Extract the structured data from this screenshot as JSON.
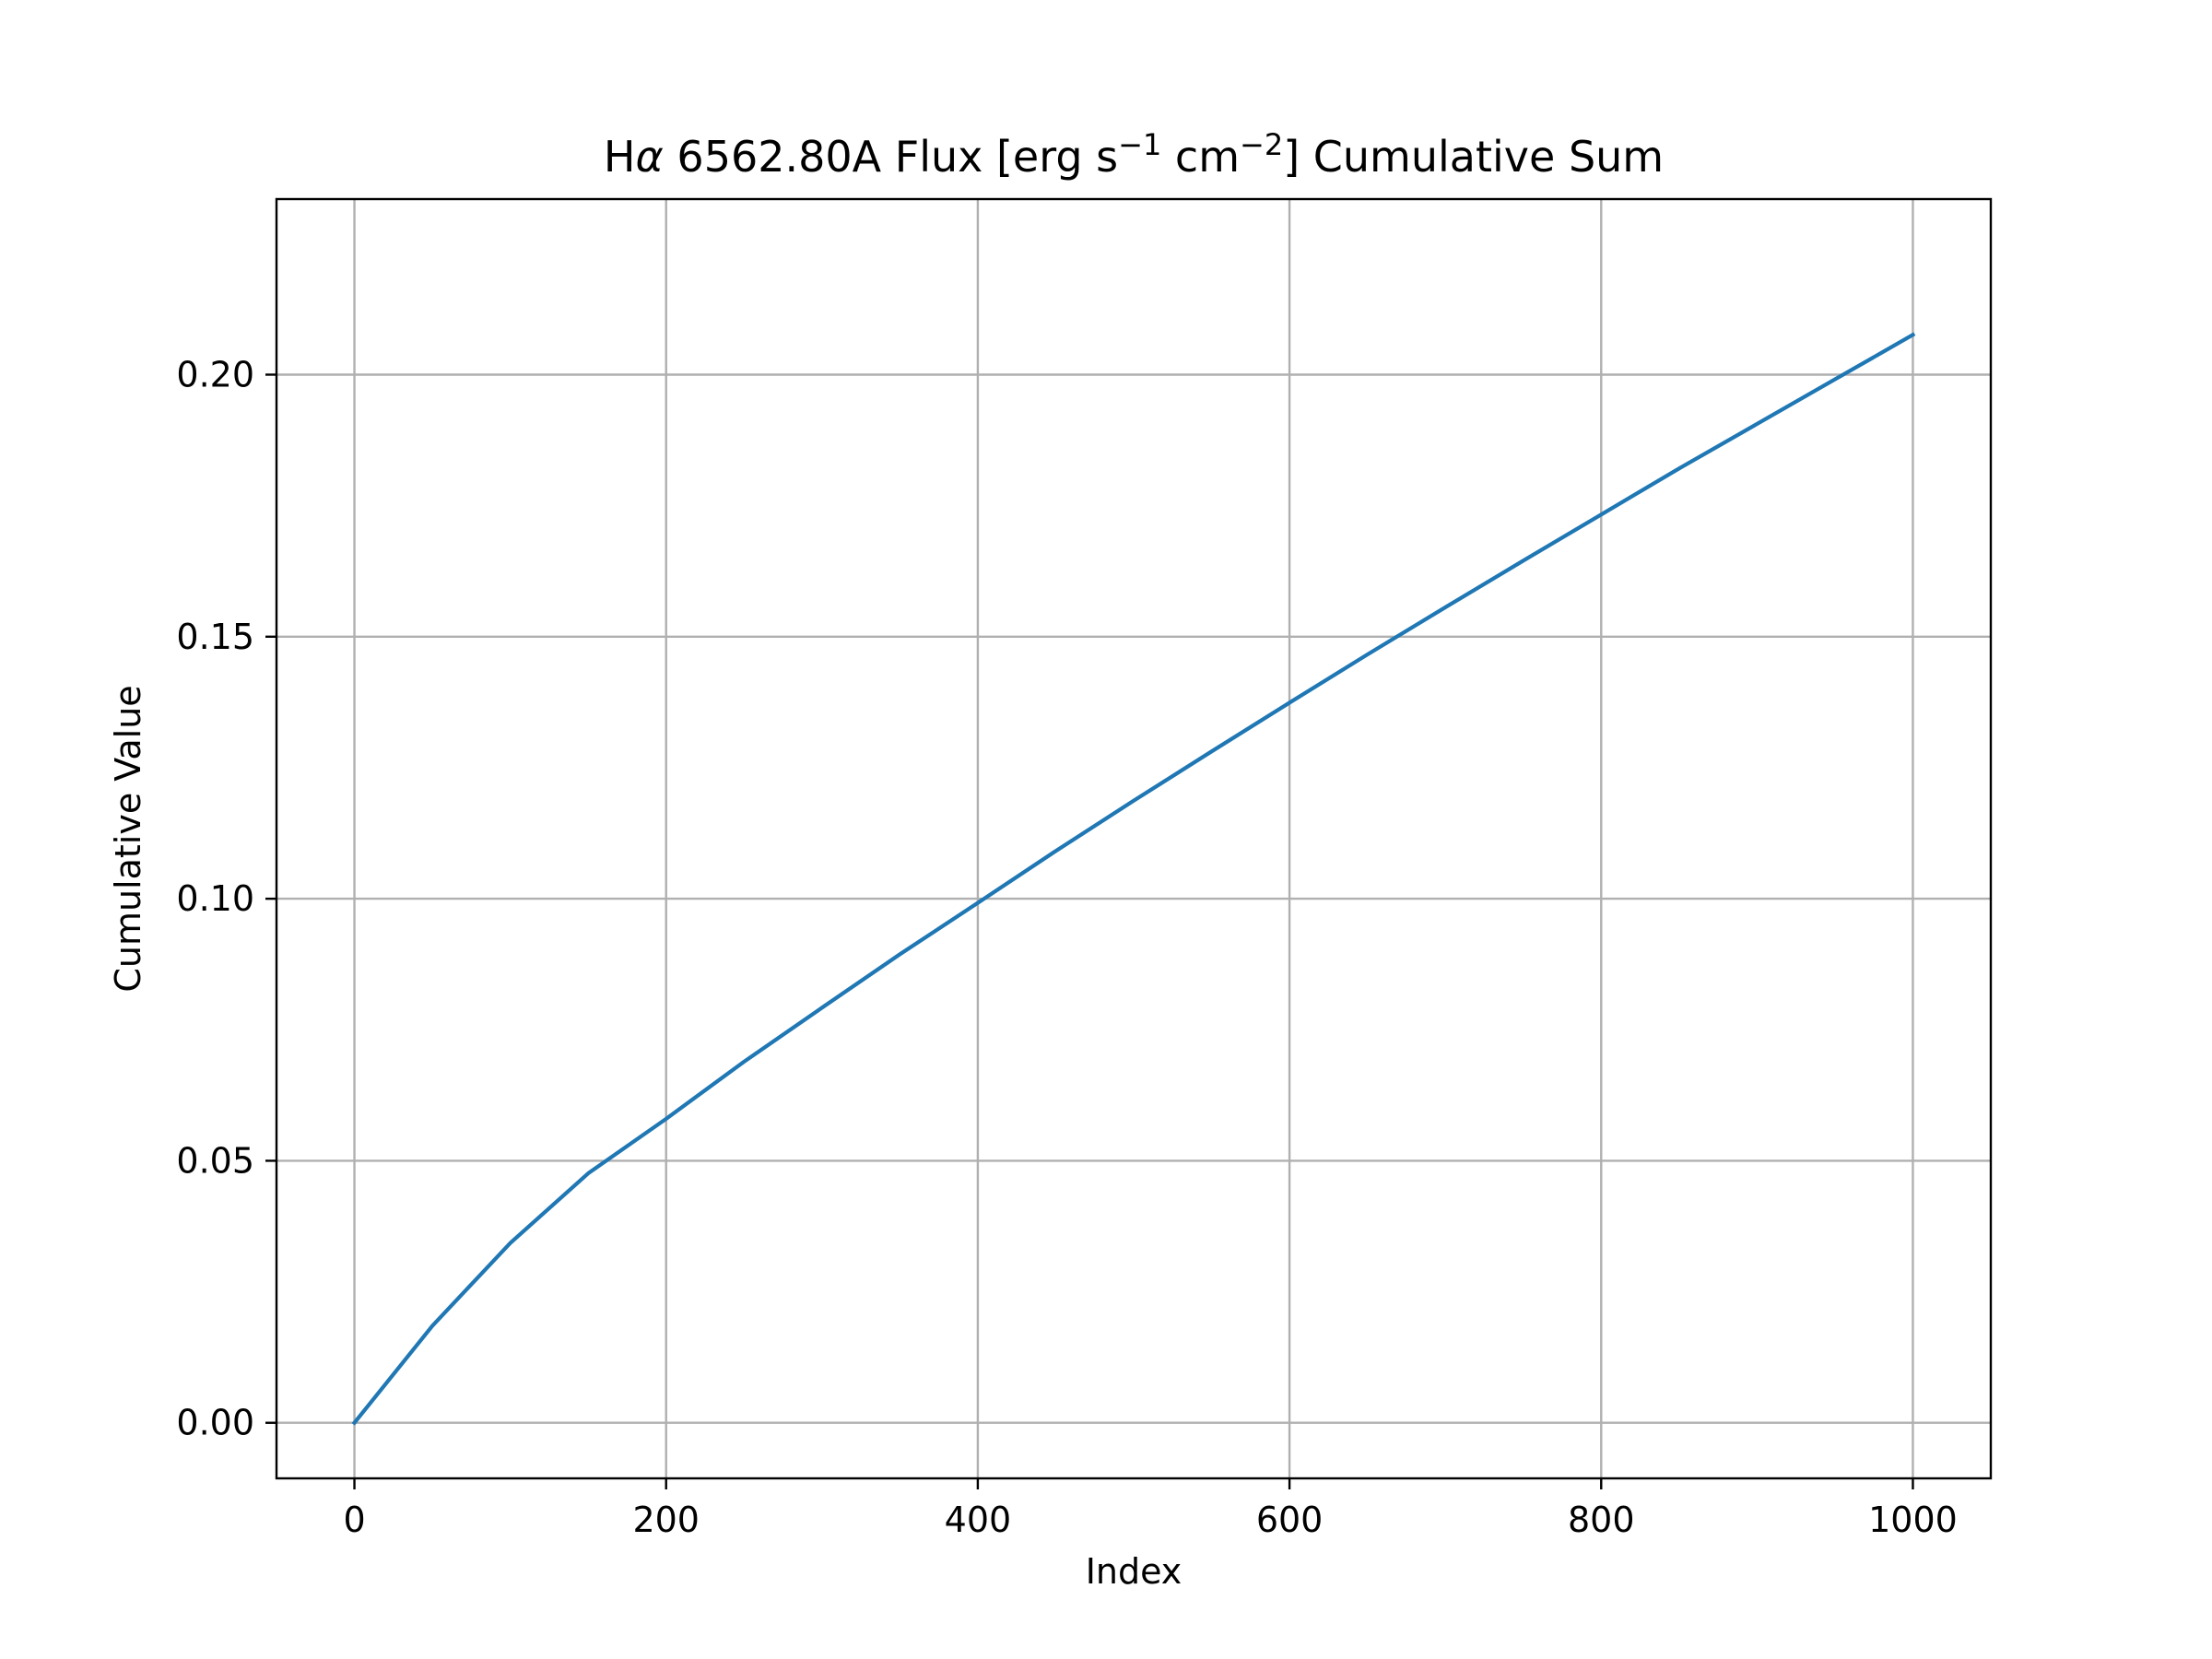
{
  "chart_data": {
    "type": "line",
    "title": {
      "prefix": "H",
      "alpha": "α",
      "middle": " 6562.80A Flux [erg s",
      "sup1": "−1",
      "cm": " cm",
      "sup2": "−2",
      "suffix": "] Cumulative Sum"
    },
    "xlabel": "Index",
    "ylabel": "Cumulative Value",
    "xlim": [
      -50,
      1050
    ],
    "ylim": [
      -0.0106,
      0.2335
    ],
    "x_ticks": [
      0,
      200,
      400,
      600,
      800,
      1000
    ],
    "x_tick_labels": [
      "0",
      "200",
      "400",
      "600",
      "800",
      "1000"
    ],
    "y_ticks": [
      0.0,
      0.05,
      0.1,
      0.15,
      0.2
    ],
    "y_tick_labels": [
      "0.00",
      "0.05",
      "0.10",
      "0.15",
      "0.20"
    ],
    "grid": true,
    "series": [
      {
        "color": "#1f77b4",
        "x": [
          0,
          50,
          100,
          150,
          200,
          250,
          300,
          350,
          400,
          450,
          500,
          550,
          600,
          650,
          700,
          750,
          800,
          850,
          900,
          950,
          1000
        ],
        "y": [
          0.0,
          0.0185,
          0.0343,
          0.0476,
          0.058,
          0.0689,
          0.0792,
          0.0894,
          0.0992,
          0.1091,
          0.1187,
          0.1281,
          0.1374,
          0.1466,
          0.1556,
          0.1645,
          0.1733,
          0.1821,
          0.1906,
          0.1991,
          0.2076
        ]
      }
    ]
  }
}
